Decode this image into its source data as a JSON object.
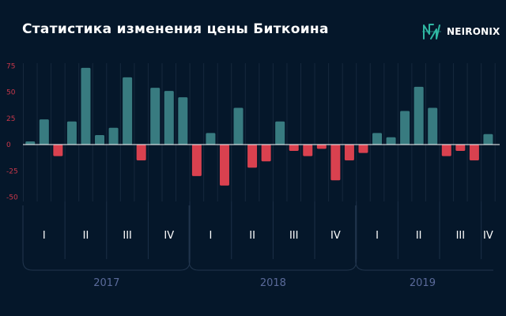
{
  "header": {
    "title": "Статистика изменения цены Биткоина",
    "brand": "NEIRONIX"
  },
  "colors": {
    "background": "#05172a",
    "positive": "#387b80",
    "negative": "#d9414f",
    "axis_label": "#c9374a",
    "year_label": "#5a6a9a",
    "quarter_label": "#ffffff",
    "brand_accent": "#2fb7a2"
  },
  "chart_data": {
    "type": "bar",
    "yticks": [
      75,
      50,
      25,
      0,
      -25,
      -50
    ],
    "ylim": [
      -55,
      78
    ],
    "years": [
      {
        "label": "2017",
        "quarters": [
          {
            "label": "I",
            "values": [
              3,
              24,
              -11
            ]
          },
          {
            "label": "II",
            "values": [
              22,
              73,
              9
            ]
          },
          {
            "label": "III",
            "values": [
              16,
              64,
              -15
            ]
          },
          {
            "label": "IV",
            "values": [
              54,
              51,
              45
            ]
          }
        ]
      },
      {
        "label": "2018",
        "quarters": [
          {
            "label": "I",
            "values": [
              -30,
              11,
              -39
            ]
          },
          {
            "label": "II",
            "values": [
              35,
              -22,
              -16
            ]
          },
          {
            "label": "III",
            "values": [
              22,
              -6,
              -11
            ]
          },
          {
            "label": "IV",
            "values": [
              -4,
              -34,
              -15
            ]
          }
        ]
      },
      {
        "label": "2019",
        "quarters": [
          {
            "label": "I",
            "values": [
              -8,
              11,
              7
            ]
          },
          {
            "label": "II",
            "values": [
              32,
              55,
              35
            ]
          },
          {
            "label": "III",
            "values": [
              -11,
              -6,
              -15
            ]
          },
          {
            "label": "IV",
            "values": [
              10
            ]
          }
        ]
      }
    ]
  }
}
